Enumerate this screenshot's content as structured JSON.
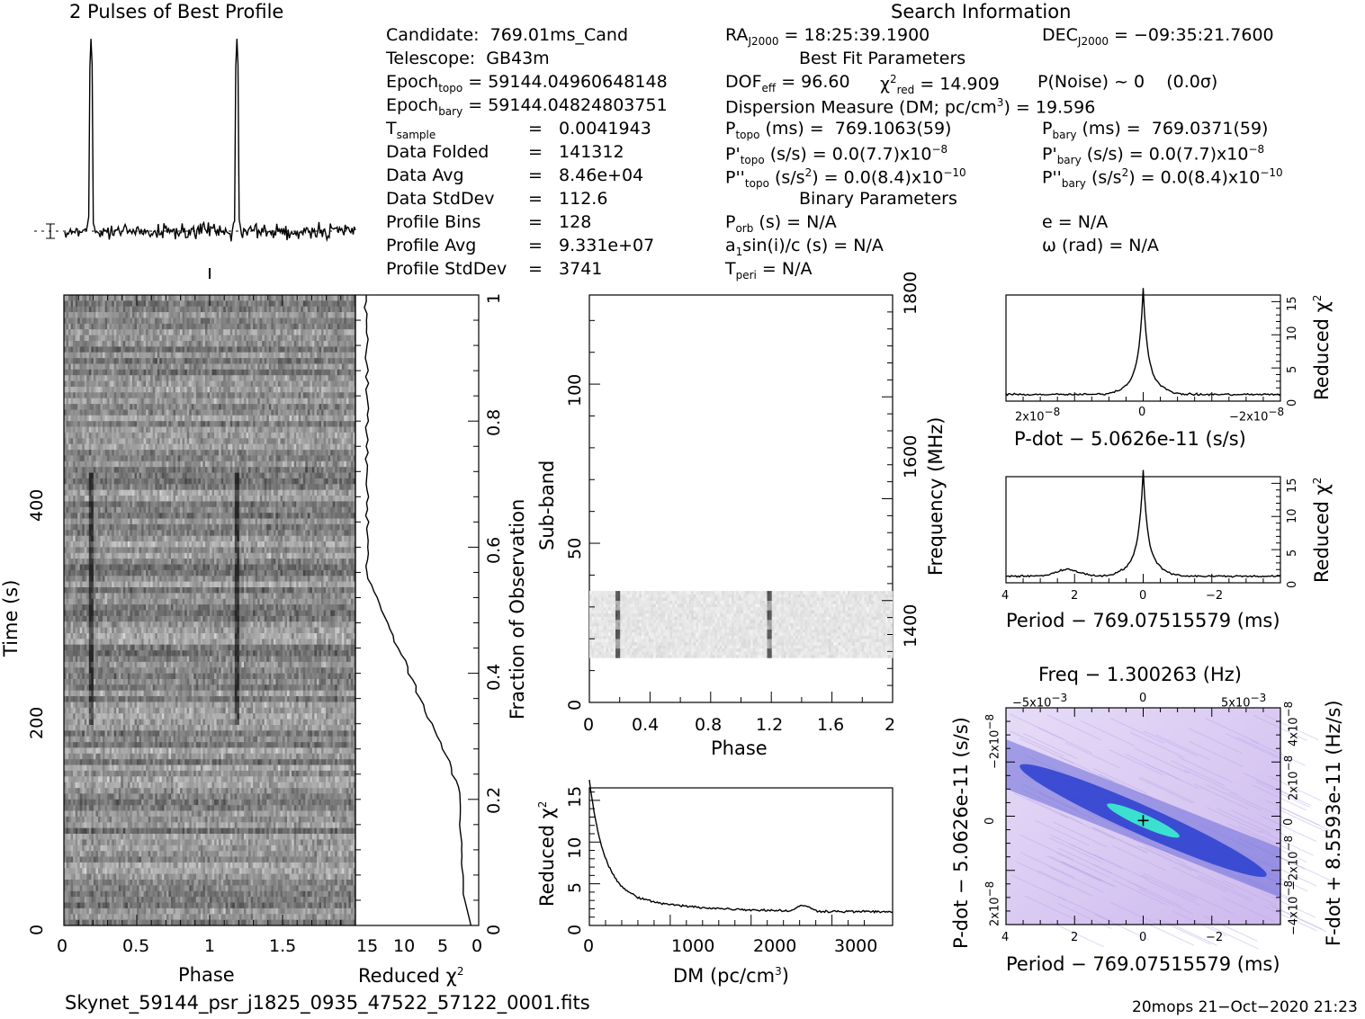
{
  "profile_title": "2 Pulses of Best Profile",
  "search_title": "Search Information",
  "info_left": [
    {
      "label": "Candidate:  769.01ms_Cand"
    },
    {
      "label": "Telescope:  GB43m"
    },
    {
      "label": "Epoch",
      "sub": "topo",
      "rest": " = 59144.04960648148"
    },
    {
      "label": "Epoch",
      "sub": "bary",
      "rest": " = 59144.04824803751"
    },
    {
      "label": "T",
      "sub": "sample",
      "rest": "",
      "value": "=   0.0041943"
    },
    {
      "label": "Data Folded",
      "value": "=   141312"
    },
    {
      "label": "Data Avg",
      "value": "=   8.46e+04"
    },
    {
      "label": "Data StdDev",
      "value": "=   112.6"
    },
    {
      "label": "Profile Bins",
      "value": "=   128"
    },
    {
      "label": "Profile Avg",
      "value": "=   9.331e+07"
    },
    {
      "label": "Profile StdDev",
      "value": "=   3741"
    }
  ],
  "info_mid": {
    "ra_pre": "RA",
    "ra_sub": "J2000",
    "ra_val": " = 18:25:39.1900",
    "best_fit_title": "Best Fit Parameters",
    "dof_pre": "DOF",
    "dof_sub": "eff",
    "dof_val": " = 96.60",
    "chi_pre": "χ",
    "chi_sup": "2",
    "chi_sub": "red",
    "chi_val": " = 14.909",
    "dm_pre": "Dispersion Measure (DM; pc/cm",
    "dm_sup": "3",
    "dm_val": ") = 19.596",
    "ptopo_pre": "P",
    "ptopo_sub": "topo",
    "ptopo_val": " (ms) =  769.1063(59)",
    "pdtopo_pre": "P'",
    "pdtopo_sub": "topo",
    "pdtopo_val": " (s/s) = 0.0(7.7)x10",
    "pdtopo_sup": "−8",
    "pddtopo_pre": "P''",
    "pddtopo_sub": "topo",
    "pddtopo_val": " (s/s",
    "pddtopo_sup2": "2",
    "pddtopo_val2": ") = 0.0(8.4)x10",
    "pddtopo_sup": "−10",
    "binary_title": "Binary Parameters",
    "porb_pre": "P",
    "porb_sub": "orb",
    "porb_val": " (s) = N/A",
    "a1_pre": "a",
    "a1_sub": "1",
    "a1_val": "sin(i)/c (s) = N/A",
    "tperi_pre": "T",
    "tperi_sub": "peri",
    "tperi_val": " = N/A"
  },
  "info_right": {
    "dec_pre": "DEC",
    "dec_sub": "J2000",
    "dec_val": " = −09:35:21.7600",
    "pnoise": "P(Noise) ~ 0    (0.0σ)",
    "pbary_pre": "P",
    "pbary_sub": "bary",
    "pbary_val": " (ms) =  769.0371(59)",
    "pdbary_pre": "P'",
    "pdbary_sub": "bary",
    "pdbary_val": " (s/s) = 0.0(7.7)x10",
    "pdbary_sup": "−8",
    "pddbary_pre": "P''",
    "pddbary_sub": "bary",
    "pddbary_val": " (s/s",
    "pddbary_sup2": "2",
    "pddbary_val2": ") = 0.0(8.4)x10",
    "pddbary_sup": "−10",
    "ecc": "e = N/A",
    "omega": "ω (rad) = N/A"
  },
  "footer_file": "Skynet_59144_psr_j1825_0935_47522_57122_0001.fits",
  "footer_stamp": "20mops 21−Oct−2020 21:23",
  "colors": {
    "ink": "#000000",
    "grey_scale": "#777777",
    "ppdot_bg": "#d9c8f0",
    "ppdot_band": "#2a3fd0",
    "ppdot_peak": "#3ce0d0"
  },
  "chart_data": [
    {
      "id": "profile",
      "type": "line",
      "x_range": [
        0,
        2
      ],
      "pulse_phases": [
        0.18,
        1.18
      ]
    },
    {
      "id": "time_phase",
      "type": "heatmap",
      "xlabel": "Phase",
      "ylabel": "Time (s)",
      "xticks": [
        "0",
        "0.5",
        "1",
        "1.5"
      ],
      "yticks": [
        "0",
        "200",
        "400"
      ],
      "xlim": [
        0,
        2
      ],
      "ylim": [
        0,
        700
      ],
      "right_label": "Fraction of Observation",
      "right_ticks": [
        "0",
        "0.2",
        "0.4",
        "0.6",
        "0.8",
        "1"
      ]
    },
    {
      "id": "time_chi2",
      "type": "line",
      "xlabel": "Reduced χ",
      "xlabel_sup": "2",
      "xticks": [
        "15",
        "10",
        "5",
        "0"
      ]
    },
    {
      "id": "subband_phase",
      "type": "heatmap",
      "xlabel": "Phase",
      "ylabel": "Sub-band",
      "xticks": [
        "0",
        "0.4",
        "0.8",
        "1.2",
        "1.6",
        "2"
      ],
      "yticks": [
        "0",
        "50",
        "100"
      ],
      "right_label": "Frequency (MHz)",
      "right_ticks": [
        "1400",
        "1600",
        "1800"
      ],
      "band_range": [
        14,
        35
      ]
    },
    {
      "id": "dm_chi2",
      "type": "line",
      "xlabel": "DM (pc/cm",
      "xlabel_sup": "3",
      "xlabel_end": ")",
      "ylabel": "Reduced χ",
      "ylabel_sup": "2",
      "xticks": [
        "0",
        "1000",
        "2000",
        "3000"
      ],
      "yticks": [
        "0",
        "5",
        "10",
        "15"
      ],
      "xlim": [
        0,
        3750
      ],
      "ylim": [
        0,
        16.5
      ]
    },
    {
      "id": "pdot_chi2",
      "type": "line",
      "xlabel": "P-dot − 5.0626e-11 (s/s)",
      "ylabel": "Reduced χ",
      "ylabel_sup": "2",
      "xticks": [
        "2x10",
        "0",
        "−2x10"
      ],
      "xtick_sup": "−8",
      "yticks": [
        "0",
        "5",
        "10",
        "15"
      ]
    },
    {
      "id": "period_chi2",
      "type": "line",
      "xlabel": "Period − 769.07515579 (ms)",
      "ylabel": "Reduced χ",
      "ylabel_sup": "2",
      "xticks": [
        "4",
        "2",
        "0",
        "−2"
      ],
      "yticks": [
        "0",
        "5",
        "10",
        "15"
      ]
    },
    {
      "id": "p_pdot",
      "type": "heatmap",
      "title": "Freq − 1.300263 (Hz)",
      "xlabel": "Period − 769.07515579 (ms)",
      "ylabel": "P-dot − 5.0626e-11 (s/s)",
      "right_label": "F-dot + 8.5593e-11 (Hz/s)",
      "xticks": [
        "4",
        "2",
        "0",
        "−2"
      ],
      "top_ticks": [
        "−5x10",
        "0",
        "5x10"
      ],
      "top_sup": "−3",
      "yticks": [
        "2x10",
        "0",
        "−2x10"
      ],
      "ytick_sup": "−8",
      "right_ticks": [
        "−4x10",
        "−2x10",
        "0",
        "2x10",
        "4x10"
      ],
      "right_sup": "−8"
    }
  ]
}
